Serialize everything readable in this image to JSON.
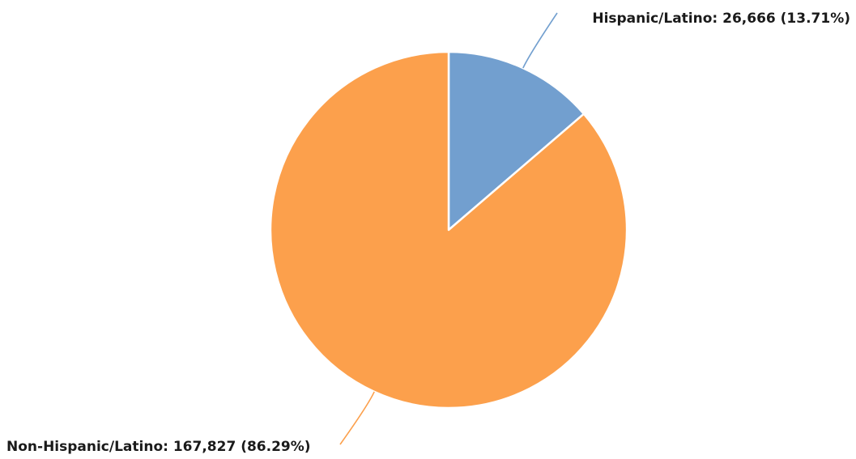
{
  "chart_data": {
    "type": "pie",
    "title": "",
    "series": [
      {
        "slices": [
          {
            "label": "Hispanic/Latino",
            "value": 26666,
            "percent": 13.71,
            "color": "#729fcf",
            "display": "Hispanic/Latino: 26,666 (13.71%)"
          },
          {
            "label": "Non-Hispanic/Latino",
            "value": 167827,
            "percent": 86.29,
            "color": "#fca04c",
            "display": "Non-Hispanic/Latino: 167,827 (86.29%)"
          }
        ]
      }
    ],
    "legend": "none",
    "start_angle": "12 o'clock",
    "direction": "clockwise"
  }
}
